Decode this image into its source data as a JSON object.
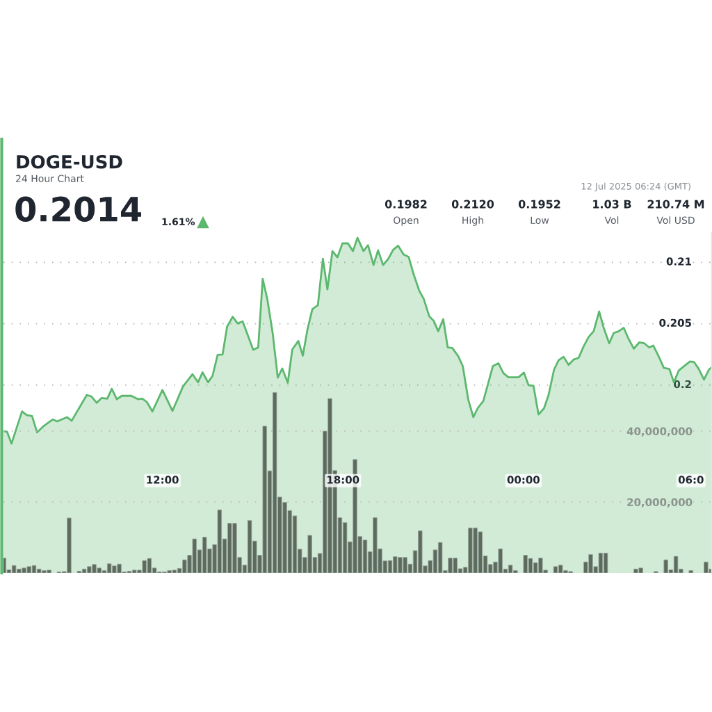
{
  "chart_data": {
    "type": "area",
    "title": "DOGE-USD",
    "subtitle": "24 Hour Chart",
    "annotations": [
      "0.2014",
      "1.61%",
      "0.1982",
      "Open",
      "0.2120",
      "High",
      "0.1952",
      "Low",
      "1.03 B",
      "Vol",
      "210.74 M",
      "Vol USD",
      "12 Jul 2025 06:24 (GMT)"
    ],
    "xlim": [
      "2025-07-11T06:43",
      "2025-07-12T06:16"
    ],
    "xticks": [
      {
        "value": "2025-07-11T12:00",
        "label": "12:00"
      },
      {
        "value": "2025-07-11T18:00",
        "label": "18:00"
      },
      {
        "value": "2025-07-12T00:00",
        "label": "00:00"
      },
      {
        "value": "2025-07-12T06:00",
        "label": "06:0"
      }
    ],
    "ylim": [
      0.1847,
      0.2124
    ],
    "yticks": [
      0.2,
      0.205,
      0.21
    ],
    "y2lim": [
      0,
      95900000
    ],
    "y2ticks": [
      {
        "value": 20000000,
        "label": "20,000,000"
      },
      {
        "value": 40000000,
        "label": "40,000,000"
      }
    ],
    "grid": "y",
    "legend": false,
    "series": [
      {
        "color": "#5cb86e",
        "x": [
          "2025-07-11T06:43",
          "2025-07-11T06:50",
          "2025-07-11T06:59",
          "2025-07-11T07:20",
          "2025-07-11T07:29",
          "2025-07-11T07:40",
          "2025-07-11T07:50",
          "2025-07-11T08:02",
          "2025-07-11T08:21",
          "2025-07-11T08:30",
          "2025-07-11T08:50",
          "2025-07-11T08:59",
          "2025-07-11T09:29",
          "2025-07-11T09:38",
          "2025-07-11T09:49",
          "2025-07-11T09:59",
          "2025-07-11T10:10",
          "2025-07-11T10:19",
          "2025-07-11T10:29",
          "2025-07-11T10:39",
          "2025-07-11T10:58",
          "2025-07-11T11:11",
          "2025-07-11T11:20",
          "2025-07-11T11:29",
          "2025-07-11T11:40",
          "2025-07-11T12:00",
          "2025-07-11T12:20",
          "2025-07-11T12:41",
          "2025-07-11T13:00",
          "2025-07-11T13:11",
          "2025-07-11T13:20",
          "2025-07-11T13:31",
          "2025-07-11T13:40",
          "2025-07-11T13:50",
          "2025-07-11T14:00",
          "2025-07-11T14:09",
          "2025-07-11T14:20",
          "2025-07-11T14:30",
          "2025-07-11T14:40",
          "2025-07-11T15:01",
          "2025-07-11T15:11",
          "2025-07-11T15:20",
          "2025-07-11T15:29",
          "2025-07-11T15:40",
          "2025-07-11T15:50",
          "2025-07-11T15:59",
          "2025-07-11T16:10",
          "2025-07-11T16:19",
          "2025-07-11T16:31",
          "2025-07-11T16:40",
          "2025-07-11T16:49",
          "2025-07-11T16:59",
          "2025-07-11T17:10",
          "2025-07-11T17:20",
          "2025-07-11T17:29",
          "2025-07-11T17:39",
          "2025-07-11T17:49",
          "2025-07-11T17:59",
          "2025-07-11T18:10",
          "2025-07-11T18:20",
          "2025-07-11T18:29",
          "2025-07-11T18:41",
          "2025-07-11T18:50",
          "2025-07-11T19:01",
          "2025-07-11T19:10",
          "2025-07-11T19:20",
          "2025-07-11T19:30",
          "2025-07-11T19:40",
          "2025-07-11T19:50",
          "2025-07-11T20:01",
          "2025-07-11T20:11",
          "2025-07-11T20:21",
          "2025-07-11T20:32",
          "2025-07-11T20:41",
          "2025-07-11T20:52",
          "2025-07-11T21:01",
          "2025-07-11T21:10",
          "2025-07-11T21:20",
          "2025-07-11T21:29",
          "2025-07-11T21:38",
          "2025-07-11T21:50",
          "2025-07-11T21:59",
          "2025-07-11T22:10",
          "2025-07-11T22:20",
          "2025-07-11T22:29",
          "2025-07-11T22:40",
          "2025-07-11T22:59",
          "2025-07-11T23:10",
          "2025-07-11T23:20",
          "2025-07-11T23:30",
          "2025-07-11T23:50",
          "2025-07-12T00:01",
          "2025-07-12T00:10",
          "2025-07-12T00:20",
          "2025-07-12T00:30",
          "2025-07-12T00:41",
          "2025-07-12T00:50",
          "2025-07-12T01:01",
          "2025-07-12T01:10",
          "2025-07-12T01:20",
          "2025-07-12T01:30",
          "2025-07-12T01:40",
          "2025-07-12T01:50",
          "2025-07-12T02:00",
          "2025-07-12T02:10",
          "2025-07-12T02:20",
          "2025-07-12T02:31",
          "2025-07-12T02:40",
          "2025-07-12T02:51",
          "2025-07-12T03:00",
          "2025-07-12T03:10",
          "2025-07-12T03:20",
          "2025-07-12T03:29",
          "2025-07-12T03:40",
          "2025-07-12T03:51",
          "2025-07-12T04:01",
          "2025-07-12T04:11",
          "2025-07-12T04:19",
          "2025-07-12T04:29",
          "2025-07-12T04:40",
          "2025-07-12T04:51",
          "2025-07-12T05:00",
          "2025-07-12T05:10",
          "2025-07-12T05:32",
          "2025-07-12T05:40",
          "2025-07-12T05:49",
          "2025-07-12T06:00",
          "2025-07-12T06:10",
          "2025-07-12T06:16"
        ],
        "values": [
          0.19625,
          0.19621,
          0.19523,
          0.19786,
          0.19757,
          0.19748,
          0.19615,
          0.19663,
          0.1972,
          0.19705,
          0.19739,
          0.1971,
          0.19919,
          0.19909,
          0.19856,
          0.19896,
          0.1989,
          0.1997,
          0.19885,
          0.19913,
          0.19913,
          0.19886,
          0.1989,
          0.19862,
          0.19786,
          0.1996,
          0.1979,
          0.19989,
          0.20089,
          0.20023,
          0.20104,
          0.20023,
          0.20076,
          0.20246,
          0.2025,
          0.20477,
          0.20557,
          0.20503,
          0.20519,
          0.20288,
          0.20307,
          0.20865,
          0.20704,
          0.2042,
          0.20061,
          0.20136,
          0.20019,
          0.20291,
          0.2036,
          0.2024,
          0.20449,
          0.20619,
          0.20651,
          0.2103,
          0.2078,
          0.21092,
          0.21041,
          0.21155,
          0.21155,
          0.21092,
          0.212,
          0.21092,
          0.2114,
          0.20979,
          0.21098,
          0.20979,
          0.21026,
          0.21102,
          0.21136,
          0.21064,
          0.21045,
          0.20903,
          0.20771,
          0.20704,
          0.20562,
          0.20524,
          0.20439,
          0.20538,
          0.20307,
          0.20303,
          0.20235,
          0.20155,
          0.19881,
          0.19739,
          0.19814,
          0.19871,
          0.20155,
          0.20178,
          0.20098,
          0.20064,
          0.20064,
          0.20102,
          0.2,
          0.19994,
          0.19761,
          0.19811,
          0.19919,
          0.20127,
          0.20203,
          0.20231,
          0.20165,
          0.20208,
          0.20222,
          0.20316,
          0.20392,
          0.20439,
          0.206,
          0.20467,
          0.20341,
          0.20424,
          0.20439,
          0.20467,
          0.20382,
          0.20297,
          0.20348,
          0.20341,
          0.20307,
          0.20322,
          0.2024,
          0.2014,
          0.20132,
          0.20023,
          0.20121,
          0.20193,
          0.20189,
          0.20136,
          0.20045,
          0.20127,
          0.20148
        ]
      },
      {
        "type": "bar",
        "axis": "y2",
        "color": "#5d6b5f",
        "x": [
          "2025-07-11T06:44",
          "2025-07-11T06:54",
          "2025-07-11T07:04",
          "2025-07-11T07:14",
          "2025-07-11T07:24",
          "2025-07-11T07:34",
          "2025-07-11T07:44",
          "2025-07-11T07:54",
          "2025-07-11T08:04",
          "2025-07-11T08:14",
          "2025-07-11T08:24",
          "2025-07-11T08:34",
          "2025-07-11T08:44",
          "2025-07-11T08:54",
          "2025-07-11T09:04",
          "2025-07-11T09:14",
          "2025-07-11T09:24",
          "2025-07-11T09:34",
          "2025-07-11T09:44",
          "2025-07-11T09:54",
          "2025-07-11T10:04",
          "2025-07-11T10:14",
          "2025-07-11T10:24",
          "2025-07-11T10:34",
          "2025-07-11T10:44",
          "2025-07-11T10:54",
          "2025-07-11T11:04",
          "2025-07-11T11:14",
          "2025-07-11T11:24",
          "2025-07-11T11:34",
          "2025-07-11T11:44",
          "2025-07-11T11:54",
          "2025-07-11T12:04",
          "2025-07-11T12:14",
          "2025-07-11T12:24",
          "2025-07-11T12:34",
          "2025-07-11T12:44",
          "2025-07-11T12:54",
          "2025-07-11T13:04",
          "2025-07-11T13:14",
          "2025-07-11T13:24",
          "2025-07-11T13:34",
          "2025-07-11T13:44",
          "2025-07-11T13:54",
          "2025-07-11T14:04",
          "2025-07-11T14:14",
          "2025-07-11T14:24",
          "2025-07-11T14:34",
          "2025-07-11T14:44",
          "2025-07-11T14:54",
          "2025-07-11T15:04",
          "2025-07-11T15:14",
          "2025-07-11T15:24",
          "2025-07-11T15:34",
          "2025-07-11T15:44",
          "2025-07-11T15:54",
          "2025-07-11T16:04",
          "2025-07-11T16:14",
          "2025-07-11T16:24",
          "2025-07-11T16:34",
          "2025-07-11T16:44",
          "2025-07-11T16:54",
          "2025-07-11T17:04",
          "2025-07-11T17:14",
          "2025-07-11T17:24",
          "2025-07-11T17:34",
          "2025-07-11T17:44",
          "2025-07-11T17:54",
          "2025-07-11T18:04",
          "2025-07-11T18:14",
          "2025-07-11T18:24",
          "2025-07-11T18:34",
          "2025-07-11T18:44",
          "2025-07-11T18:54",
          "2025-07-11T19:04",
          "2025-07-11T19:14",
          "2025-07-11T19:24",
          "2025-07-11T19:34",
          "2025-07-11T19:44",
          "2025-07-11T19:54",
          "2025-07-11T20:04",
          "2025-07-11T20:14",
          "2025-07-11T20:24",
          "2025-07-11T20:34",
          "2025-07-11T20:44",
          "2025-07-11T20:54",
          "2025-07-11T21:04",
          "2025-07-11T21:14",
          "2025-07-11T21:24",
          "2025-07-11T21:34",
          "2025-07-11T21:44",
          "2025-07-11T21:54",
          "2025-07-11T22:04",
          "2025-07-11T22:14",
          "2025-07-11T22:24",
          "2025-07-11T22:34",
          "2025-07-11T22:44",
          "2025-07-11T22:54",
          "2025-07-11T23:04",
          "2025-07-11T23:14",
          "2025-07-11T23:24",
          "2025-07-11T23:34",
          "2025-07-11T23:44",
          "2025-07-11T23:54",
          "2025-07-12T00:04",
          "2025-07-12T00:14",
          "2025-07-12T00:24",
          "2025-07-12T00:34",
          "2025-07-12T00:44",
          "2025-07-12T00:54",
          "2025-07-12T01:04",
          "2025-07-12T01:14",
          "2025-07-12T01:24",
          "2025-07-12T01:34",
          "2025-07-12T01:44",
          "2025-07-12T01:54",
          "2025-07-12T02:04",
          "2025-07-12T02:14",
          "2025-07-12T02:24",
          "2025-07-12T02:34",
          "2025-07-12T02:44",
          "2025-07-12T02:54",
          "2025-07-12T03:04",
          "2025-07-12T03:14",
          "2025-07-12T03:24",
          "2025-07-12T03:34",
          "2025-07-12T03:44",
          "2025-07-12T03:54",
          "2025-07-12T04:04",
          "2025-07-12T04:14",
          "2025-07-12T04:24",
          "2025-07-12T04:34",
          "2025-07-12T04:44",
          "2025-07-12T04:54",
          "2025-07-12T05:04",
          "2025-07-12T05:14",
          "2025-07-12T05:24",
          "2025-07-12T05:34",
          "2025-07-12T05:44",
          "2025-07-12T05:54",
          "2025-07-12T06:04",
          "2025-07-12T06:14"
        ],
        "values": [
          4200000,
          900000,
          2100000,
          1100000,
          1400000,
          1800000,
          2100000,
          1100000,
          700000,
          800000,
          null,
          300000,
          400000,
          15500000,
          null,
          500000,
          1100000,
          1800000,
          2400000,
          1400000,
          700000,
          2600000,
          2000000,
          2500000,
          300000,
          500000,
          800000,
          800000,
          3500000,
          4100000,
          1400000,
          300000,
          300000,
          700000,
          800000,
          1300000,
          3700000,
          5000000,
          9600000,
          6500000,
          10100000,
          6800000,
          8000000,
          17800000,
          9600000,
          14000000,
          14000000,
          4400000,
          2200000,
          14800000,
          9000000,
          5000000,
          41400000,
          28800000,
          50900000,
          21400000,
          19900000,
          17600000,
          16100000,
          6700000,
          4400000,
          10600000,
          4400000,
          5500000,
          40000000,
          49200000,
          28900000,
          15600000,
          14200000,
          8800000,
          32000000,
          10300000,
          9300000,
          6000000,
          15600000,
          6800000,
          3400000,
          3500000,
          4600000,
          4400000,
          4400000,
          2500000,
          6300000,
          11900000,
          2000000,
          3500000,
          6500000,
          8600000,
          700000,
          4200000,
          4200000,
          1200000,
          1600000,
          12700000,
          12700000,
          11600000,
          4800000,
          2400000,
          3100000,
          6800000,
          1100000,
          2200000,
          700000,
          null,
          5000000,
          4100000,
          2900000,
          4200000,
          800000,
          null,
          1800000,
          2200000,
          700000,
          400000,
          null,
          null,
          3100000,
          5200000,
          1800000,
          5600000,
          5600000,
          null,
          null,
          null,
          null,
          null,
          1100000,
          1400000,
          null,
          null,
          400000,
          null,
          3700000,
          900000,
          4700000,
          1100000,
          null,
          700000,
          null,
          null,
          3100000,
          1100000
        ]
      }
    ]
  }
}
